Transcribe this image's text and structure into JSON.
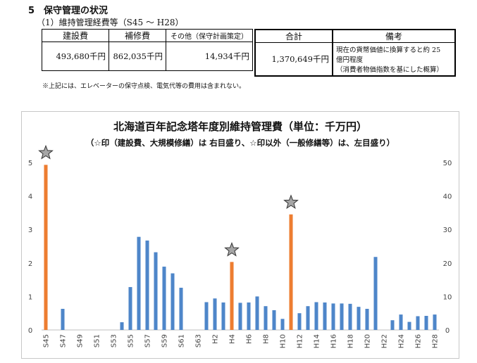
{
  "section": {
    "title": "5　保守管理の状況",
    "subtitle": "（1）維持管理経費等（S45 ～ H28）"
  },
  "table": {
    "headers": [
      "建設費",
      "補修費",
      "その他（保守計画策定）"
    ],
    "values": [
      "493,680千円",
      "862,035千円",
      "14,934千円"
    ],
    "total_header": "合計",
    "total_value": "1,370,649千円",
    "remarks_header": "備考",
    "remarks_lines": [
      "現在の貨幣価値に換算すると約 25",
      "億円程度",
      "（消費者物価指数を基にした概算）"
    ]
  },
  "note": "※上記には、エレベーターの保守点検、電気代等の費用は含まれない。",
  "chart_data": {
    "type": "bar",
    "title": "北海道百年記念塔年度別維持管理費（単位：千万円）",
    "subtitle": "（☆印（建設費、大規模修繕）は 右目盛り、☆印以外（一般修繕等）は、左目盛り）",
    "categories": [
      "S45",
      "S46",
      "S47",
      "S48",
      "S49",
      "S50",
      "S51",
      "S52",
      "S53",
      "S54",
      "S55",
      "S56",
      "S57",
      "S58",
      "S59",
      "S60",
      "S61",
      "S62",
      "S63",
      "H1",
      "H2",
      "H3",
      "H4",
      "H5",
      "H6",
      "H7",
      "H8",
      "H9",
      "H10",
      "H11",
      "H12",
      "H13",
      "H14",
      "H15",
      "H16",
      "H17",
      "H18",
      "H19",
      "H20",
      "H21",
      "H22",
      "H23",
      "H24",
      "H25",
      "H26",
      "H27",
      "H28"
    ],
    "tick_labels": [
      "S45",
      "S47",
      "S49",
      "S51",
      "S53",
      "S55",
      "S57",
      "S59",
      "S61",
      "S63",
      "H2",
      "H4",
      "H6",
      "H8",
      "H10",
      "H12",
      "H14",
      "H16",
      "H18",
      "H20",
      "H22",
      "H24",
      "H26",
      "H28"
    ],
    "left_axis": {
      "ylim": [
        0,
        5
      ],
      "ticks": [
        0,
        1,
        2,
        3,
        4,
        5
      ]
    },
    "right_axis": {
      "ylim": [
        0,
        50
      ],
      "ticks": [
        0,
        10,
        20,
        30,
        40,
        50
      ]
    },
    "series": [
      {
        "values": [
          0,
          0,
          0.63,
          0,
          0,
          0,
          0,
          0,
          0,
          0.23,
          1.28,
          2.78,
          2.67,
          2.32,
          1.89,
          1.69,
          1.26,
          0,
          0,
          0.83,
          0.94,
          0.82,
          0,
          0.81,
          0.82,
          1.0,
          0.71,
          0.59,
          0.33,
          0,
          0.5,
          0.71,
          0.83,
          0.82,
          0.79,
          0.79,
          0.78,
          0.69,
          0.63,
          2.18,
          0,
          0.29,
          0.46,
          0.24,
          0.41,
          0.42,
          0.46
        ],
        "color": "#4e86c9",
        "axis": "left"
      },
      {
        "values": [
          49.3,
          0,
          0,
          0,
          0,
          0,
          0,
          0,
          0,
          0,
          0,
          0,
          0,
          0,
          0,
          0,
          0,
          0,
          0,
          0,
          0,
          0,
          20.3,
          0,
          0,
          0,
          0,
          0,
          0,
          34.5,
          0,
          0,
          0,
          0,
          0,
          0,
          0,
          0,
          0,
          0,
          0,
          0,
          0,
          0,
          0,
          0,
          0
        ],
        "color": "#ed7d31",
        "axis": "right",
        "marker": "star"
      }
    ],
    "grid": false,
    "legend": "none"
  }
}
